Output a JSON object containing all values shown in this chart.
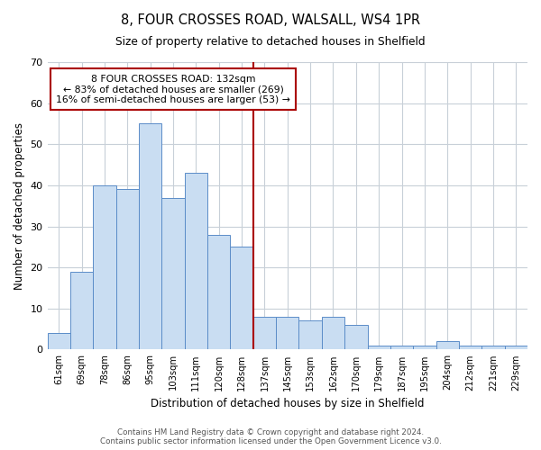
{
  "title": "8, FOUR CROSSES ROAD, WALSALL, WS4 1PR",
  "subtitle": "Size of property relative to detached houses in Shelfield",
  "xlabel": "Distribution of detached houses by size in Shelfield",
  "ylabel": "Number of detached properties",
  "bar_labels": [
    "61sqm",
    "69sqm",
    "78sqm",
    "86sqm",
    "95sqm",
    "103sqm",
    "111sqm",
    "120sqm",
    "128sqm",
    "137sqm",
    "145sqm",
    "153sqm",
    "162sqm",
    "170sqm",
    "179sqm",
    "187sqm",
    "195sqm",
    "204sqm",
    "212sqm",
    "221sqm",
    "229sqm"
  ],
  "bar_values": [
    4,
    19,
    40,
    39,
    55,
    37,
    43,
    28,
    25,
    8,
    8,
    7,
    8,
    6,
    1,
    1,
    1,
    2,
    1,
    1,
    1
  ],
  "bar_color": "#c9ddf2",
  "bar_edge_color": "#5b8cc8",
  "annotation_title": "8 FOUR CROSSES ROAD: 132sqm",
  "annotation_line1": "← 83% of detached houses are smaller (269)",
  "annotation_line2": "16% of semi-detached houses are larger (53) →",
  "annotation_box_edge": "#aa0000",
  "ref_line_color": "#aa0000",
  "ylim": [
    0,
    70
  ],
  "yticks": [
    0,
    10,
    20,
    30,
    40,
    50,
    60,
    70
  ],
  "footer_line1": "Contains HM Land Registry data © Crown copyright and database right 2024.",
  "footer_line2": "Contains public sector information licensed under the Open Government Licence v3.0.",
  "bg_color": "#ffffff",
  "grid_color": "#c8d0d8"
}
